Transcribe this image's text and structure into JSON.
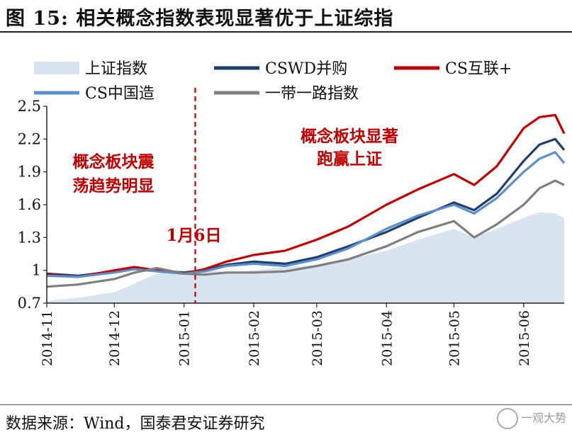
{
  "title": "图 15: 相关概念指数表现显著优于上证综指",
  "source": "数据来源：Wind，国泰君安证券研究",
  "watermark": "一观大势",
  "chart_data": {
    "type": "line",
    "title": "",
    "xlabel": "",
    "ylabel": "",
    "ylim": [
      0.7,
      2.5
    ],
    "yticks": [
      0.7,
      1,
      1.3,
      1.6,
      1.9,
      2.2,
      2.5
    ],
    "ytick_labels": [
      "0.7",
      "1",
      "1.3",
      "1.6",
      "1.9",
      "2.2",
      "2.5"
    ],
    "xlim": [
      "2014-11-01",
      "2015-06-19"
    ],
    "xticks": [
      "2014-11",
      "2014-12",
      "2015-01",
      "2015-02",
      "2015-03",
      "2015-04",
      "2015-05",
      "2015-06"
    ],
    "legend_position": "top",
    "grid": false,
    "annotations": {
      "left_text": [
        "概念板块震",
        "荡趋势明显"
      ],
      "right_text": [
        "概念板块显著",
        "跑赢上证"
      ],
      "marker_label": "1月6日",
      "marker_date": "2015-01-06"
    },
    "series": [
      {
        "name": "上证指数",
        "style": "area",
        "color": "#d9e4f1",
        "x": [
          "2014-11-01",
          "2014-11-15",
          "2014-12-01",
          "2014-12-10",
          "2014-12-20",
          "2015-01-01",
          "2015-01-10",
          "2015-01-20",
          "2015-02-01",
          "2015-02-15",
          "2015-03-01",
          "2015-03-15",
          "2015-04-01",
          "2015-04-15",
          "2015-05-01",
          "2015-05-10",
          "2015-05-20",
          "2015-06-01",
          "2015-06-08",
          "2015-06-15",
          "2015-06-19"
        ],
        "values": [
          0.72,
          0.75,
          0.8,
          0.88,
          0.97,
          1.0,
          1.02,
          0.98,
          1.0,
          1.03,
          1.05,
          1.1,
          1.18,
          1.28,
          1.38,
          1.3,
          1.38,
          1.48,
          1.53,
          1.52,
          1.48
        ]
      },
      {
        "name": "CSWD并购",
        "style": "line",
        "color": "#1f3e6e",
        "x": [
          "2014-11-01",
          "2014-11-15",
          "2014-12-01",
          "2014-12-10",
          "2014-12-20",
          "2015-01-01",
          "2015-01-10",
          "2015-01-20",
          "2015-02-01",
          "2015-02-15",
          "2015-03-01",
          "2015-03-15",
          "2015-04-01",
          "2015-04-15",
          "2015-05-01",
          "2015-05-10",
          "2015-05-20",
          "2015-06-01",
          "2015-06-08",
          "2015-06-15",
          "2015-06-19"
        ],
        "values": [
          0.97,
          0.95,
          0.99,
          1.02,
          1.0,
          0.98,
          1.0,
          1.05,
          1.08,
          1.06,
          1.12,
          1.22,
          1.35,
          1.48,
          1.62,
          1.55,
          1.7,
          2.0,
          2.15,
          2.2,
          2.1
        ]
      },
      {
        "name": "CS互联+",
        "style": "line",
        "color": "#c00000",
        "x": [
          "2014-11-01",
          "2014-11-15",
          "2014-12-01",
          "2014-12-10",
          "2014-12-20",
          "2015-01-01",
          "2015-01-10",
          "2015-01-20",
          "2015-02-01",
          "2015-02-15",
          "2015-03-01",
          "2015-03-15",
          "2015-04-01",
          "2015-04-15",
          "2015-05-01",
          "2015-05-10",
          "2015-05-20",
          "2015-06-01",
          "2015-06-08",
          "2015-06-15",
          "2015-06-19"
        ],
        "values": [
          0.96,
          0.94,
          1.0,
          1.03,
          1.0,
          0.97,
          1.01,
          1.08,
          1.14,
          1.18,
          1.28,
          1.4,
          1.6,
          1.74,
          1.88,
          1.78,
          1.95,
          2.3,
          2.4,
          2.42,
          2.25
        ]
      },
      {
        "name": "CS中国造",
        "style": "line",
        "color": "#5b8fc9",
        "x": [
          "2014-11-01",
          "2014-11-15",
          "2014-12-01",
          "2014-12-10",
          "2014-12-20",
          "2015-01-01",
          "2015-01-10",
          "2015-01-20",
          "2015-02-01",
          "2015-02-15",
          "2015-03-01",
          "2015-03-15",
          "2015-04-01",
          "2015-04-15",
          "2015-05-01",
          "2015-05-10",
          "2015-05-20",
          "2015-06-01",
          "2015-06-08",
          "2015-06-15",
          "2015-06-19"
        ],
        "values": [
          0.95,
          0.94,
          0.98,
          1.01,
          0.99,
          0.97,
          0.99,
          1.04,
          1.06,
          1.04,
          1.1,
          1.2,
          1.38,
          1.5,
          1.6,
          1.52,
          1.66,
          1.9,
          2.02,
          2.08,
          1.98
        ]
      },
      {
        "name": "一带一路指数",
        "style": "line",
        "color": "#7f7f7f",
        "x": [
          "2014-11-01",
          "2014-11-15",
          "2014-12-01",
          "2014-12-10",
          "2014-12-20",
          "2015-01-01",
          "2015-01-10",
          "2015-01-20",
          "2015-02-01",
          "2015-02-15",
          "2015-03-01",
          "2015-03-15",
          "2015-04-01",
          "2015-04-15",
          "2015-05-01",
          "2015-05-10",
          "2015-05-20",
          "2015-06-01",
          "2015-06-08",
          "2015-06-15",
          "2015-06-19"
        ],
        "values": [
          0.85,
          0.87,
          0.92,
          0.98,
          1.02,
          0.97,
          0.96,
          0.98,
          0.98,
          0.99,
          1.04,
          1.1,
          1.22,
          1.35,
          1.45,
          1.3,
          1.42,
          1.6,
          1.75,
          1.82,
          1.78
        ]
      }
    ]
  }
}
